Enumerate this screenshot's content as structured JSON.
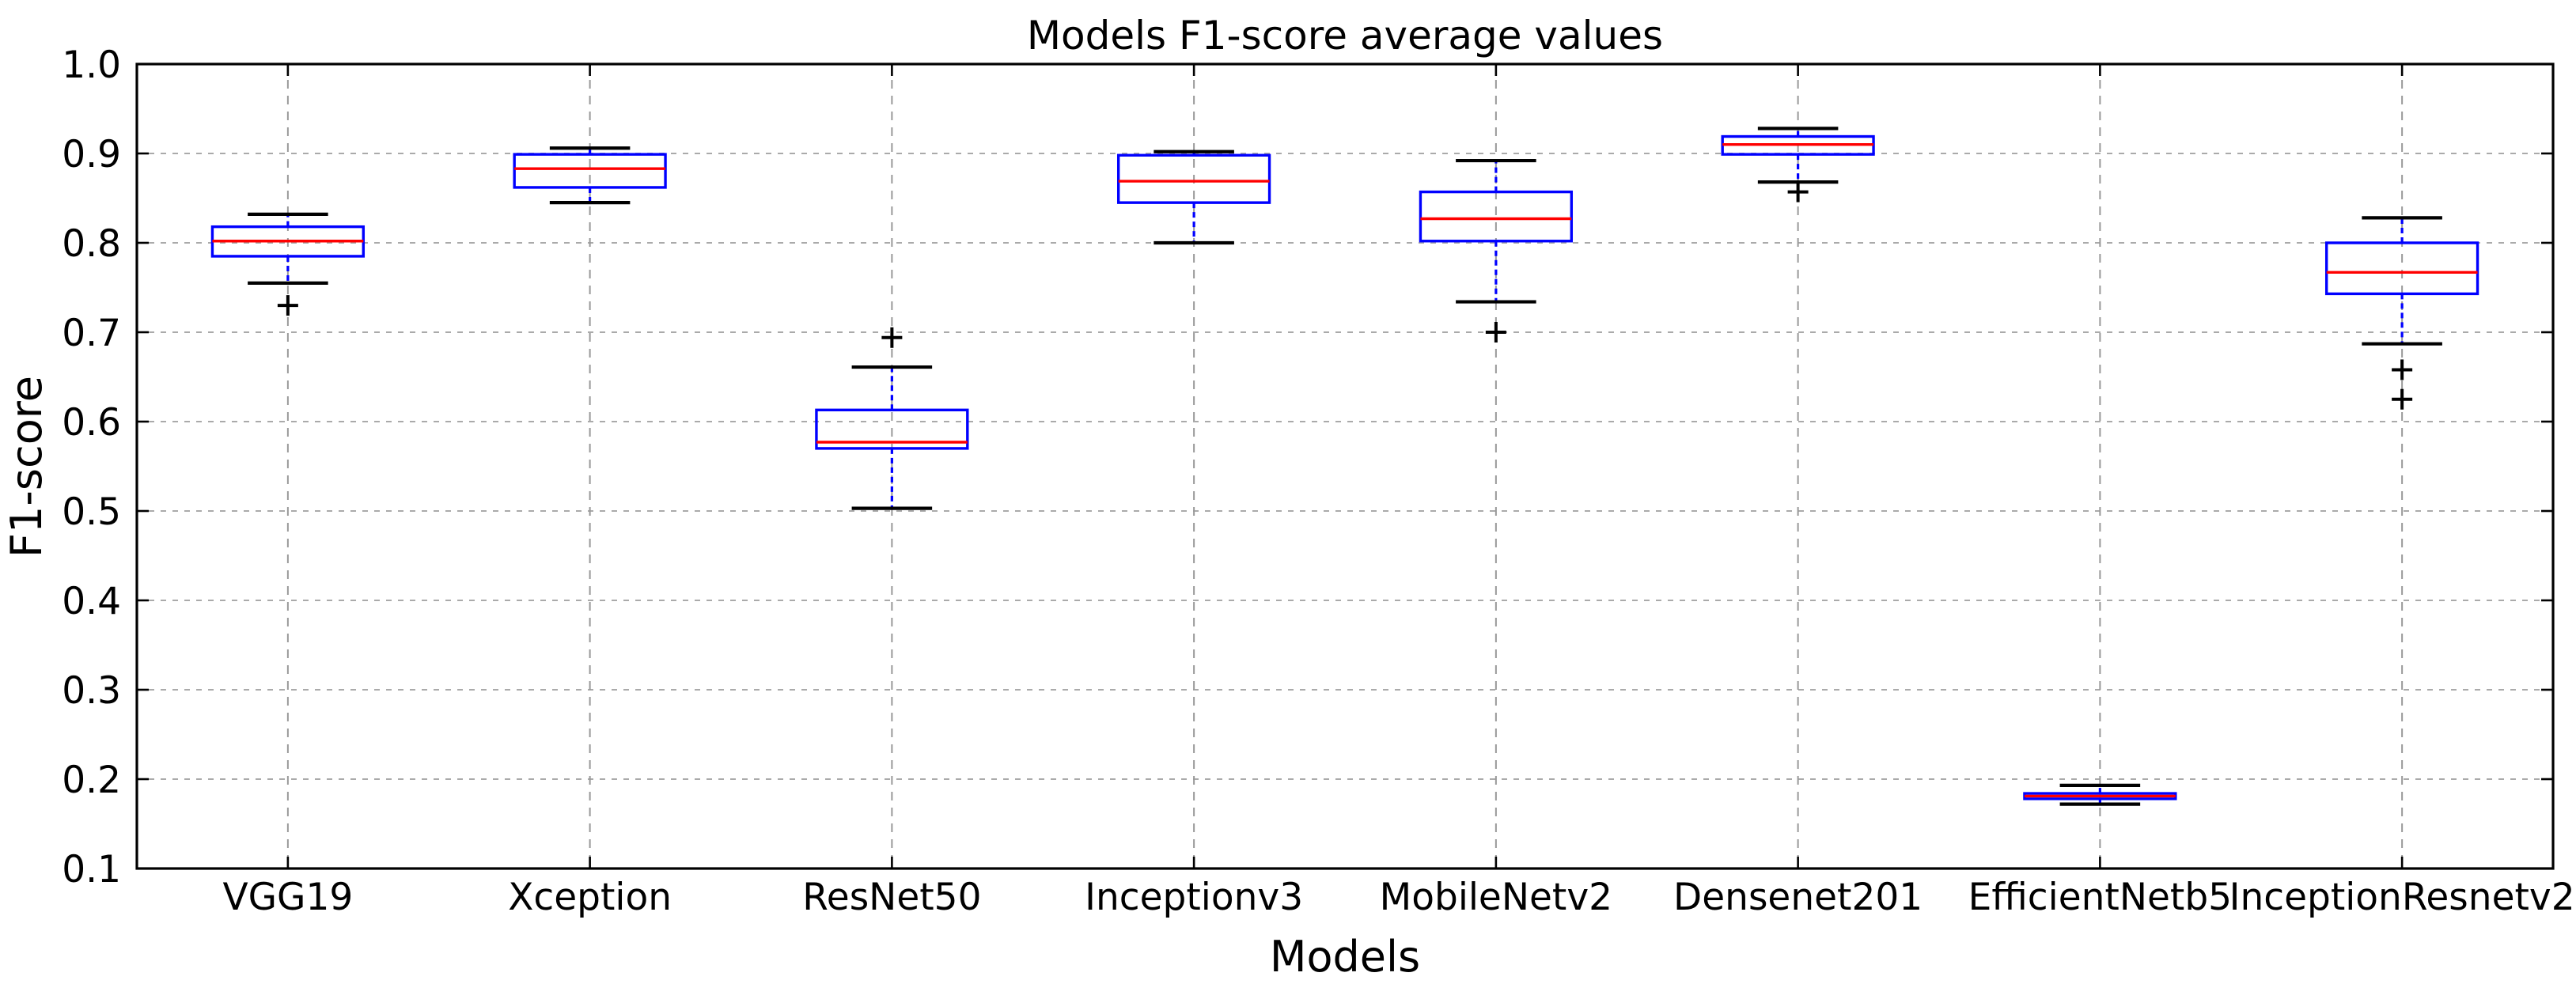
{
  "chart_data": {
    "type": "boxplot",
    "title": "Models F1-score average values",
    "xlabel": "Models",
    "ylabel": "F1-score",
    "ylim": [
      0.1,
      1.0
    ],
    "ytick_labels": [
      "1.0",
      "0.9",
      "0.8",
      "0.7",
      "0.6",
      "0.5",
      "0.4",
      "0.3",
      "0.2",
      "0.1"
    ],
    "ytick_values": [
      1.0,
      0.9,
      0.8,
      0.7,
      0.6,
      0.5,
      0.4,
      0.3,
      0.2,
      0.1
    ],
    "grid": true,
    "legend": "none",
    "categories": [
      "VGG19",
      "Xception",
      "ResNet50",
      "Inceptionv3",
      "MobileNetv2",
      "Densenet201",
      "EfficientNetb5",
      "InceptionResnetv2"
    ],
    "boxes": [
      {
        "label": "VGG19",
        "whislo": 0.755,
        "q1": 0.785,
        "med": 0.802,
        "q3": 0.818,
        "whishi": 0.832,
        "fliers": [
          0.73
        ]
      },
      {
        "label": "Xception",
        "whislo": 0.845,
        "q1": 0.862,
        "med": 0.883,
        "q3": 0.899,
        "whishi": 0.906,
        "fliers": []
      },
      {
        "label": "ResNet50",
        "whislo": 0.503,
        "q1": 0.57,
        "med": 0.577,
        "q3": 0.613,
        "whishi": 0.661,
        "fliers": [
          0.694
        ]
      },
      {
        "label": "Inceptionv3",
        "whislo": 0.8,
        "q1": 0.845,
        "med": 0.869,
        "q3": 0.898,
        "whishi": 0.902,
        "fliers": []
      },
      {
        "label": "MobileNetv2",
        "whislo": 0.734,
        "q1": 0.802,
        "med": 0.827,
        "q3": 0.857,
        "whishi": 0.892,
        "fliers": [
          0.7
        ]
      },
      {
        "label": "Densenet201",
        "whislo": 0.868,
        "q1": 0.899,
        "med": 0.91,
        "q3": 0.919,
        "whishi": 0.928,
        "fliers": [
          0.857
        ]
      },
      {
        "label": "EfficientNetb5",
        "whislo": 0.172,
        "q1": 0.178,
        "med": 0.181,
        "q3": 0.184,
        "whishi": 0.193,
        "fliers": []
      },
      {
        "label": "InceptionResnetv2",
        "whislo": 0.687,
        "q1": 0.743,
        "med": 0.767,
        "q3": 0.8,
        "whishi": 0.828,
        "fliers": [
          0.658,
          0.625
        ]
      }
    ],
    "colors": {
      "box": "#0000ff",
      "median": "#ff0000",
      "whisker": "#0000ff",
      "cap": "#000000",
      "flier": "#000000",
      "grid_x": "#999999",
      "grid_y": "#aaaaaa",
      "axis": "#000000",
      "background": "#ffffff"
    }
  }
}
